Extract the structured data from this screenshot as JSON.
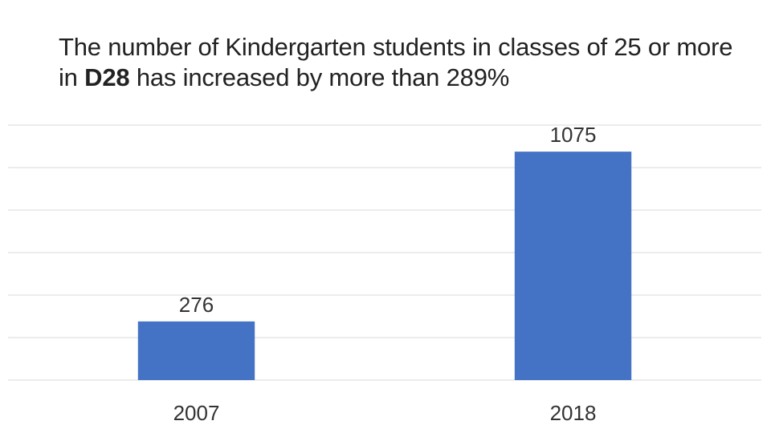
{
  "title": {
    "part1": "The number of Kindergarten students in classes of 25 or more in ",
    "bold": "D28",
    "part2": " has increased by more than 289%"
  },
  "chart_data": {
    "type": "bar",
    "categories": [
      "2007",
      "2018"
    ],
    "values": [
      276,
      1075
    ],
    "data_labels": [
      "276",
      "1075"
    ],
    "ylim": [
      0,
      1200
    ],
    "grid": true,
    "gridline_count": 7,
    "bar_color": "#4472C4",
    "gridline_color": "#d9d9d9",
    "xlabel": "",
    "ylabel": ""
  }
}
